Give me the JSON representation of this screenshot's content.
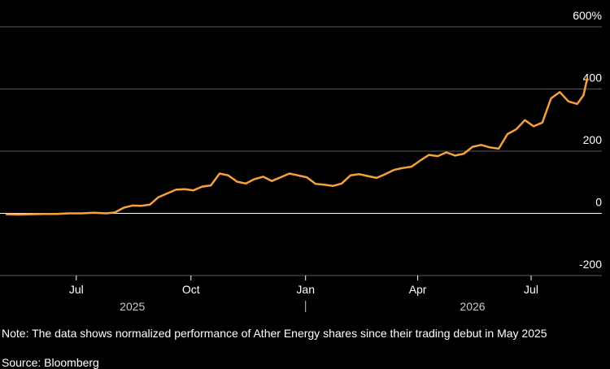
{
  "chart_data": {
    "type": "line",
    "title": "",
    "xlabel": "",
    "ylabel": "",
    "ylim": [
      -200,
      600
    ],
    "y_ticks": [
      -200,
      0,
      200,
      400,
      600
    ],
    "y_tick_labels": [
      "-200",
      "0",
      "200",
      "400",
      "600%"
    ],
    "x_range": [
      "2025-05-06",
      "2026-09-01"
    ],
    "x_ticks": [
      {
        "date": "2025-07-01",
        "label": "Jul"
      },
      {
        "date": "2025-10-01",
        "label": "Oct"
      },
      {
        "date": "2026-01-01",
        "label": "Jan"
      },
      {
        "date": "2026-04-01",
        "label": "Apr"
      },
      {
        "date": "2026-07-01",
        "label": "Jul"
      }
    ],
    "year_labels": [
      {
        "date": "2025-08-15",
        "label": "2025"
      },
      {
        "date": "2026-05-15",
        "label": "2026"
      }
    ],
    "year_separator": "2026-01-01",
    "grid": true,
    "line_color": "#f7a13b",
    "series": [
      {
        "name": "",
        "points": [
          [
            "2025-05-06",
            -3
          ],
          [
            "2025-05-15",
            -4
          ],
          [
            "2025-05-25",
            -3
          ],
          [
            "2025-06-05",
            -2
          ],
          [
            "2025-06-15",
            -2
          ],
          [
            "2025-06-25",
            0
          ],
          [
            "2025-07-05",
            0
          ],
          [
            "2025-07-15",
            2
          ],
          [
            "2025-07-25",
            0
          ],
          [
            "2025-08-01",
            3
          ],
          [
            "2025-08-08",
            18
          ],
          [
            "2025-08-15",
            25
          ],
          [
            "2025-08-22",
            24
          ],
          [
            "2025-08-29",
            28
          ],
          [
            "2025-09-05",
            52
          ],
          [
            "2025-09-12",
            64
          ],
          [
            "2025-09-19",
            76
          ],
          [
            "2025-09-26",
            78
          ],
          [
            "2025-10-03",
            74
          ],
          [
            "2025-10-10",
            86
          ],
          [
            "2025-10-17",
            90
          ],
          [
            "2025-10-24",
            128
          ],
          [
            "2025-10-31",
            122
          ],
          [
            "2025-11-07",
            102
          ],
          [
            "2025-11-14",
            96
          ],
          [
            "2025-11-21",
            110
          ],
          [
            "2025-11-28",
            118
          ],
          [
            "2025-12-05",
            104
          ],
          [
            "2025-12-12",
            116
          ],
          [
            "2025-12-19",
            128
          ],
          [
            "2025-12-26",
            122
          ],
          [
            "2026-01-02",
            116
          ],
          [
            "2026-01-09",
            95
          ],
          [
            "2026-01-16",
            92
          ],
          [
            "2026-01-23",
            88
          ],
          [
            "2026-01-30",
            96
          ],
          [
            "2026-02-06",
            122
          ],
          [
            "2026-02-13",
            126
          ],
          [
            "2026-02-20",
            120
          ],
          [
            "2026-02-27",
            114
          ],
          [
            "2026-03-06",
            126
          ],
          [
            "2026-03-13",
            140
          ],
          [
            "2026-03-20",
            146
          ],
          [
            "2026-03-27",
            150
          ],
          [
            "2026-04-03",
            170
          ],
          [
            "2026-04-10",
            188
          ],
          [
            "2026-04-17",
            184
          ],
          [
            "2026-04-24",
            196
          ],
          [
            "2026-05-01",
            186
          ],
          [
            "2026-05-08",
            192
          ],
          [
            "2026-05-15",
            214
          ],
          [
            "2026-05-22",
            220
          ],
          [
            "2026-05-29",
            212
          ],
          [
            "2026-06-05",
            208
          ],
          [
            "2026-06-12",
            255
          ],
          [
            "2026-06-19",
            270
          ],
          [
            "2026-06-26",
            300
          ],
          [
            "2026-07-03",
            280
          ],
          [
            "2026-07-10",
            292
          ],
          [
            "2026-07-17",
            370
          ],
          [
            "2026-07-24",
            390
          ],
          [
            "2026-07-31",
            360
          ],
          [
            "2026-08-07",
            352
          ],
          [
            "2026-08-12",
            380
          ],
          [
            "2026-08-15",
            434
          ]
        ]
      }
    ]
  },
  "footer": {
    "note": "Note: The data shows normalized performance of Ather Energy shares since their trading debut in May 2025",
    "source": "Source: Bloomberg"
  }
}
